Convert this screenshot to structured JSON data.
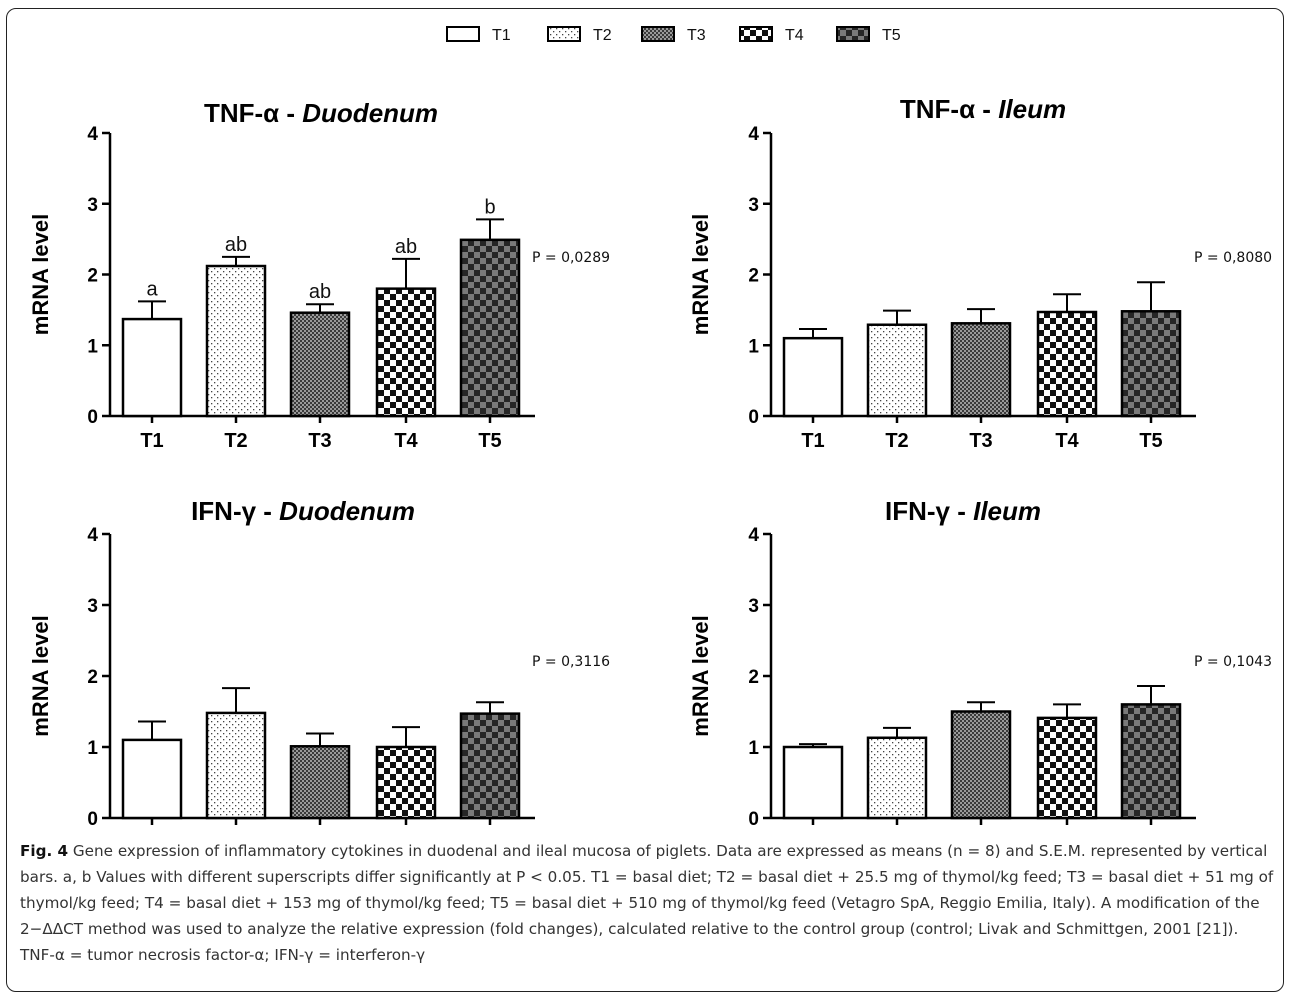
{
  "legend": [
    {
      "label": "T1",
      "pattern": "empty"
    },
    {
      "label": "T2",
      "pattern": "dots"
    },
    {
      "label": "T3",
      "pattern": "grid"
    },
    {
      "label": "T4",
      "pattern": "checker"
    },
    {
      "label": "T5",
      "pattern": "darkchecker"
    }
  ],
  "chart_data": [
    {
      "type": "bar",
      "title_prefix": "TNF-α - ",
      "title_em": "Duodenum",
      "ylabel": "mRNA level",
      "ylim": [
        0,
        4
      ],
      "yticks": [
        0,
        1,
        2,
        3,
        4
      ],
      "categories": [
        "T1",
        "T2",
        "T3",
        "T4",
        "T5"
      ],
      "values": [
        1.37,
        2.12,
        1.46,
        1.8,
        2.49
      ],
      "errors": [
        0.25,
        0.13,
        0.12,
        0.42,
        0.29
      ],
      "letters": [
        "a",
        "ab",
        "ab",
        "ab",
        "b"
      ],
      "pvalue": "P = 0,0289"
    },
    {
      "type": "bar",
      "title_prefix": "TNF-α - ",
      "title_em": "Ileum",
      "ylabel": "mRNA level",
      "ylim": [
        0,
        4
      ],
      "yticks": [
        0,
        1,
        2,
        3,
        4
      ],
      "categories": [
        "T1",
        "T2",
        "T3",
        "T4",
        "T5"
      ],
      "values": [
        1.1,
        1.29,
        1.31,
        1.47,
        1.48
      ],
      "errors": [
        0.13,
        0.2,
        0.2,
        0.25,
        0.41
      ],
      "letters": [
        "",
        "",
        "",
        "",
        ""
      ],
      "pvalue": "P = 0,8080"
    },
    {
      "type": "bar",
      "title_prefix": "IFN-γ - ",
      "title_em": "Duodenum",
      "ylabel": "mRNA level",
      "ylim": [
        0,
        4
      ],
      "yticks": [
        0,
        1,
        2,
        3,
        4
      ],
      "categories": [
        "T1",
        "T2",
        "T3",
        "T4",
        "T5"
      ],
      "values": [
        1.1,
        1.48,
        1.01,
        1.0,
        1.47
      ],
      "errors": [
        0.26,
        0.35,
        0.18,
        0.28,
        0.16
      ],
      "letters": [
        "",
        "",
        "",
        "",
        ""
      ],
      "pvalue": "P = 0,3116"
    },
    {
      "type": "bar",
      "title_prefix": "IFN-γ - ",
      "title_em": "Ileum",
      "ylabel": "mRNA level",
      "ylim": [
        0,
        4
      ],
      "yticks": [
        0,
        1,
        2,
        3,
        4
      ],
      "categories": [
        "T1",
        "T2",
        "T3",
        "T4",
        "T5"
      ],
      "values": [
        1.0,
        1.13,
        1.5,
        1.41,
        1.6
      ],
      "errors": [
        0.04,
        0.14,
        0.13,
        0.19,
        0.26
      ],
      "letters": [
        "",
        "",
        "",
        "",
        ""
      ],
      "pvalue": "P = 0,1043"
    }
  ],
  "caption": {
    "label": "Fig. 4",
    "text": "Gene expression of inflammatory cytokines in duodenal and ileal mucosa of piglets. Data are expressed as means (n = 8) and S.E.M. represented by vertical bars. a, b Values with different superscripts differ significantly at P < 0.05. T1 = basal diet; T2 = basal diet + 25.5 mg of thymol/kg feed; T3 = basal diet + 51 mg of thymol/kg feed; T4 = basal diet + 153 mg of thymol/kg feed; T5 = basal diet + 510 mg of thymol/kg feed (Vetagro SpA, Reggio Emilia, Italy). A modification of the 2−ΔΔCT method was used to analyze the relative expression (fold changes), calculated relative to the control group (control; Livak and Schmittgen, 2001 [21]). TNF-α = tumor necrosis factor-α; IFN-γ = interferon-γ"
  }
}
